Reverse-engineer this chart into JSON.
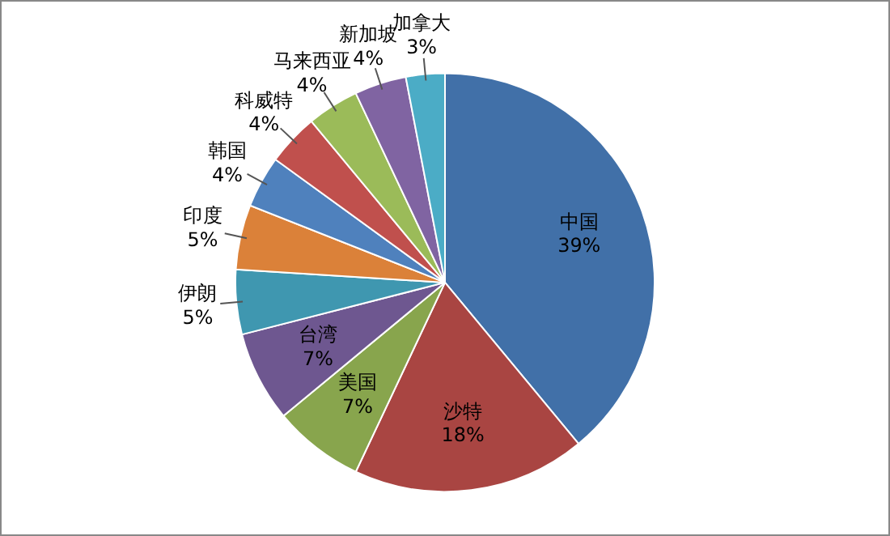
{
  "chart_data": {
    "type": "pie",
    "categories": [
      "中国",
      "沙特",
      "美国",
      "台湾",
      "伊朗",
      "印度",
      "韩国",
      "科威特",
      "马来西亚",
      "新加坡",
      "加拿大"
    ],
    "values": [
      39,
      18,
      7,
      7,
      5,
      5,
      4,
      4,
      4,
      4,
      3
    ],
    "value_labels": [
      "39%",
      "18%",
      "7%",
      "7%",
      "5%",
      "5%",
      "4%",
      "4%",
      "4%",
      "4%",
      "3%"
    ],
    "colors": [
      "#4170a8",
      "#a94542",
      "#88a54d",
      "#6e5790",
      "#3f97b0",
      "#db8139",
      "#4f81bd",
      "#c0504d",
      "#9bbb59",
      "#8064a2",
      "#4bacc6"
    ],
    "legend": false
  }
}
